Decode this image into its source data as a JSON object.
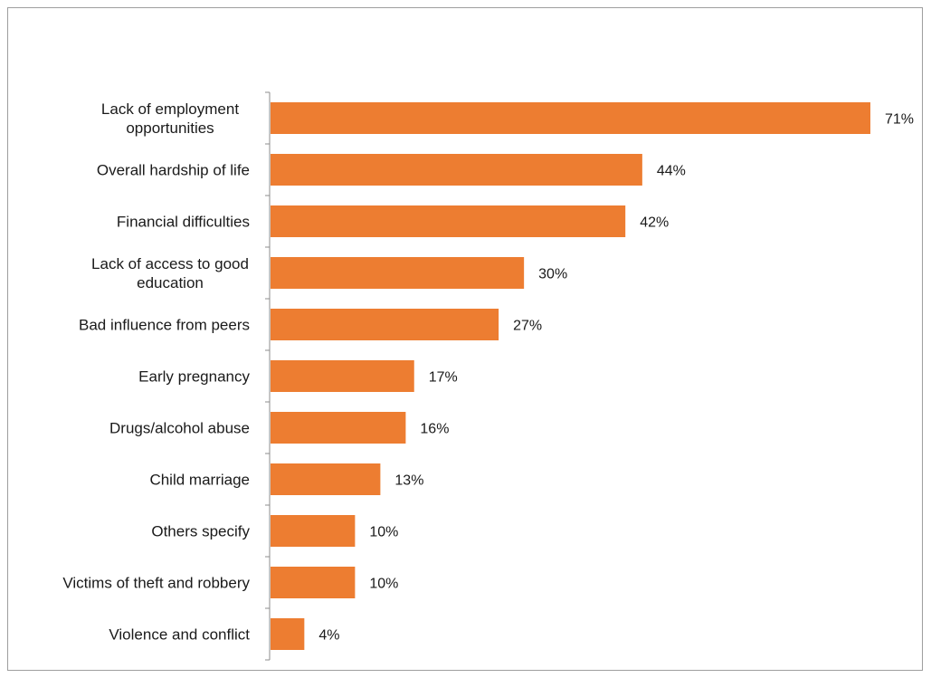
{
  "chart_data": {
    "type": "bar",
    "orientation": "horizontal",
    "title": "",
    "xlabel": "",
    "ylabel": "",
    "categories": [
      "Lack of employment opportunities",
      "Overall hardship of life",
      "Financial difficulties",
      "Lack of access to good education",
      "Bad influence from peers",
      "Early pregnancy",
      "Drugs/alcohol abuse",
      "Child marriage",
      "Others specify",
      "Victims of theft and robbery",
      "Violence and conflict"
    ],
    "category_lines": [
      [
        "Lack of employment",
        "opportunities"
      ],
      [
        "Overall hardship of life"
      ],
      [
        "Financial difficulties"
      ],
      [
        "Lack of access to good",
        "education"
      ],
      [
        "Bad influence from peers"
      ],
      [
        "Early pregnancy"
      ],
      [
        "Drugs/alcohol abuse"
      ],
      [
        "Child marriage"
      ],
      [
        "Others specify"
      ],
      [
        "Victims of theft and robbery"
      ],
      [
        "Violence and conflict"
      ]
    ],
    "values": [
      71,
      44,
      42,
      30,
      27,
      17,
      16,
      13,
      10,
      10,
      4
    ],
    "value_labels": [
      "71%",
      "44%",
      "42%",
      "30%",
      "27%",
      "17%",
      "16%",
      "13%",
      "10%",
      "10%",
      "4%"
    ],
    "xlim": [
      0,
      71
    ],
    "grid": false,
    "legend": "none",
    "bar_color": "#ED7D31"
  }
}
